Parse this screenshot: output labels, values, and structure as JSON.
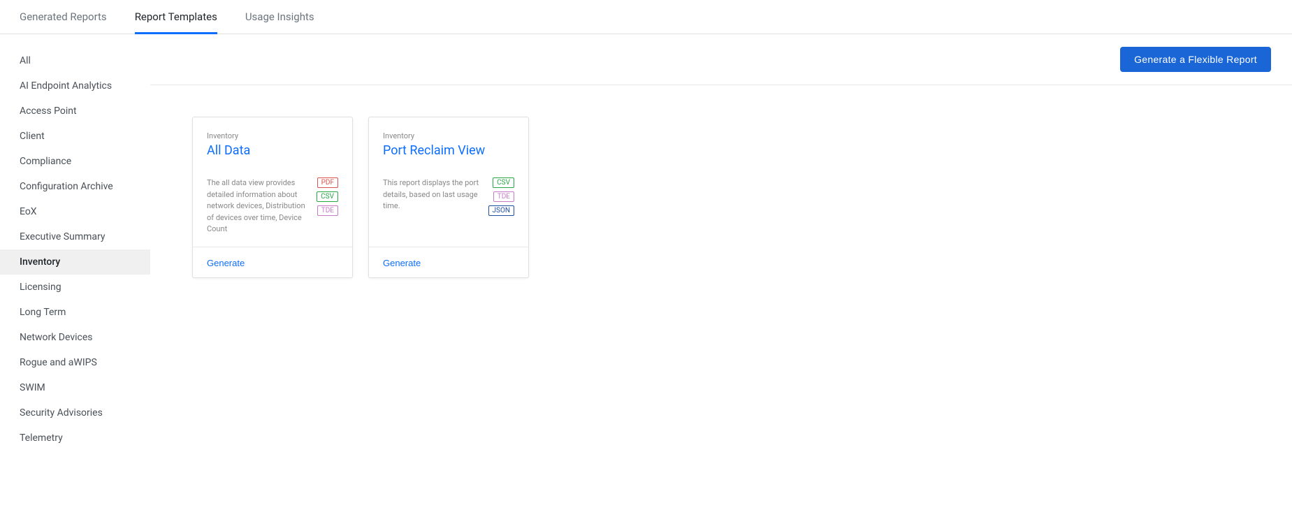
{
  "tabs": [
    {
      "label": "Generated Reports",
      "active": false
    },
    {
      "label": "Report Templates",
      "active": true
    },
    {
      "label": "Usage Insights",
      "active": false
    }
  ],
  "sidebar": {
    "items": [
      {
        "label": "All",
        "active": false
      },
      {
        "label": "AI Endpoint Analytics",
        "active": false
      },
      {
        "label": "Access Point",
        "active": false
      },
      {
        "label": "Client",
        "active": false
      },
      {
        "label": "Compliance",
        "active": false
      },
      {
        "label": "Configuration Archive",
        "active": false
      },
      {
        "label": "EoX",
        "active": false
      },
      {
        "label": "Executive Summary",
        "active": false
      },
      {
        "label": "Inventory",
        "active": true
      },
      {
        "label": "Licensing",
        "active": false
      },
      {
        "label": "Long Term",
        "active": false
      },
      {
        "label": "Network Devices",
        "active": false
      },
      {
        "label": "Rogue and aWIPS",
        "active": false
      },
      {
        "label": "SWIM",
        "active": false
      },
      {
        "label": "Security Advisories",
        "active": false
      },
      {
        "label": "Telemetry",
        "active": false
      }
    ]
  },
  "toolbar": {
    "primary_button_label": "Generate a Flexible Report"
  },
  "cards": [
    {
      "category": "Inventory",
      "title": "All Data",
      "description": "The all data view provides detailed information about network devices, Distribution of devices over time, Device Count",
      "badges": [
        {
          "type": "pdf",
          "label": "PDF"
        },
        {
          "type": "csv",
          "label": "CSV"
        },
        {
          "type": "tde",
          "label": "TDE"
        }
      ],
      "generate_label": "Generate"
    },
    {
      "category": "Inventory",
      "title": "Port Reclaim View",
      "description": "This report displays the port details, based on last usage time.",
      "badges": [
        {
          "type": "csv",
          "label": "CSV"
        },
        {
          "type": "tde",
          "label": "TDE"
        },
        {
          "type": "json",
          "label": "JSON"
        }
      ],
      "generate_label": "Generate"
    }
  ]
}
